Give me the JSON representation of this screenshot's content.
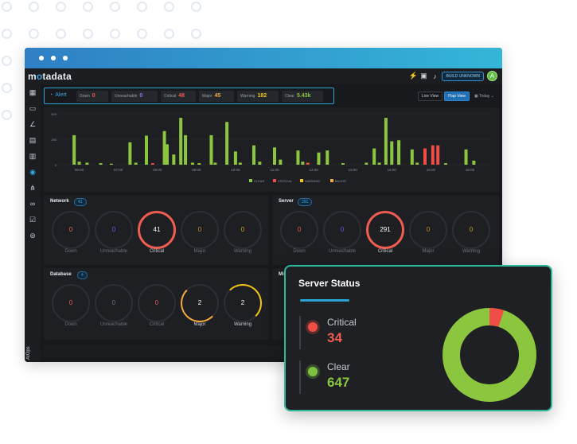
{
  "window": {
    "logo_prefix": "m",
    "logo_o": "o",
    "logo_suffix": "tadata",
    "build_label": "BUILD UNKNOWN",
    "avatar_letter": "A"
  },
  "alert": {
    "label": "Alert",
    "chips": [
      {
        "label": "Down",
        "value": "0",
        "color": "#ef5c50"
      },
      {
        "label": "Unreachable",
        "value": "0",
        "color": "#9b6cf2"
      },
      {
        "label": "Critical",
        "value": "48",
        "color": "#ef5c50"
      },
      {
        "label": "Major",
        "value": "45",
        "color": "#f2a93b"
      },
      {
        "label": "Warning",
        "value": "182",
        "color": "#f5c518"
      },
      {
        "label": "Clear",
        "value": "5.43k",
        "color": "#8cc63f"
      }
    ]
  },
  "views": {
    "live": "Live View",
    "flap": "Flap View",
    "range": "Today"
  },
  "chart_data": {
    "type": "bar",
    "y_ticks": [
      "0",
      "250",
      "500"
    ],
    "ylim": [
      0,
      500
    ],
    "x_ticks": [
      "06:00",
      "07:00",
      "08:00",
      "09:00",
      "10:00",
      "11:00",
      "12:00",
      "13:00",
      "14:00",
      "15:00",
      "16:00"
    ],
    "legend": [
      "CLEAR",
      "CRITICAL",
      "WARNING",
      "MAJOR"
    ],
    "colors": {
      "CLEAR": "#8cc63f",
      "CRITICAL": "#ef4d46",
      "WARNING": "#f5c518",
      "MAJOR": "#f2a93b"
    },
    "bars": [
      {
        "t": 5.87,
        "v": 290,
        "s": "CLEAR"
      },
      {
        "t": 6.0,
        "v": 30,
        "s": "CLEAR"
      },
      {
        "t": 6.2,
        "v": 20,
        "s": "CLEAR"
      },
      {
        "t": 6.55,
        "v": 15,
        "s": "CLEAR"
      },
      {
        "t": 6.82,
        "v": 10,
        "s": "CLEAR"
      },
      {
        "t": 7.3,
        "v": 220,
        "s": "CLEAR"
      },
      {
        "t": 7.45,
        "v": 20,
        "s": "CLEAR"
      },
      {
        "t": 7.72,
        "v": 285,
        "s": "CLEAR"
      },
      {
        "t": 7.88,
        "v": 15,
        "s": "CRITICAL"
      },
      {
        "t": 8.18,
        "v": 330,
        "s": "CLEAR"
      },
      {
        "t": 8.25,
        "v": 200,
        "s": "CLEAR"
      },
      {
        "t": 8.42,
        "v": 100,
        "s": "CLEAR"
      },
      {
        "t": 8.6,
        "v": 460,
        "s": "CLEAR"
      },
      {
        "t": 8.72,
        "v": 290,
        "s": "CLEAR"
      },
      {
        "t": 8.9,
        "v": 20,
        "s": "CLEAR"
      },
      {
        "t": 9.07,
        "v": 15,
        "s": "CLEAR"
      },
      {
        "t": 9.38,
        "v": 290,
        "s": "CLEAR"
      },
      {
        "t": 9.48,
        "v": 20,
        "s": "CLEAR"
      },
      {
        "t": 9.78,
        "v": 420,
        "s": "CLEAR"
      },
      {
        "t": 10.0,
        "v": 130,
        "s": "CLEAR"
      },
      {
        "t": 10.12,
        "v": 20,
        "s": "CLEAR"
      },
      {
        "t": 10.47,
        "v": 190,
        "s": "CLEAR"
      },
      {
        "t": 10.62,
        "v": 30,
        "s": "CLEAR"
      },
      {
        "t": 11.0,
        "v": 170,
        "s": "CLEAR"
      },
      {
        "t": 11.15,
        "v": 50,
        "s": "CLEAR"
      },
      {
        "t": 11.6,
        "v": 140,
        "s": "CLEAR"
      },
      {
        "t": 11.72,
        "v": 30,
        "s": "CLEAR"
      },
      {
        "t": 11.85,
        "v": 20,
        "s": "CRITICAL"
      },
      {
        "t": 12.13,
        "v": 120,
        "s": "CLEAR"
      },
      {
        "t": 12.35,
        "v": 140,
        "s": "CLEAR"
      },
      {
        "t": 12.75,
        "v": 15,
        "s": "CLEAR"
      },
      {
        "t": 13.35,
        "v": 20,
        "s": "CLEAR"
      },
      {
        "t": 13.55,
        "v": 160,
        "s": "CLEAR"
      },
      {
        "t": 13.68,
        "v": 20,
        "s": "CLEAR"
      },
      {
        "t": 13.85,
        "v": 460,
        "s": "CLEAR"
      },
      {
        "t": 14.0,
        "v": 230,
        "s": "CLEAR"
      },
      {
        "t": 14.18,
        "v": 240,
        "s": "CLEAR"
      },
      {
        "t": 14.52,
        "v": 150,
        "s": "CLEAR"
      },
      {
        "t": 14.65,
        "v": 20,
        "s": "CLEAR"
      },
      {
        "t": 14.85,
        "v": 160,
        "s": "CRITICAL"
      },
      {
        "t": 15.05,
        "v": 190,
        "s": "CRITICAL"
      },
      {
        "t": 15.18,
        "v": 190,
        "s": "CRITICAL"
      },
      {
        "t": 15.38,
        "v": 15,
        "s": "CLEAR"
      },
      {
        "t": 15.9,
        "v": 150,
        "s": "CLEAR"
      },
      {
        "t": 16.1,
        "v": 40,
        "s": "CLEAR"
      }
    ]
  },
  "network": {
    "title": "Network",
    "count": "41",
    "gauges": [
      {
        "label": "Down",
        "value": "0",
        "color": "#ef5c50"
      },
      {
        "label": "Unreachable",
        "value": "0",
        "color": "#5a60d8"
      },
      {
        "label": "Critical",
        "value": "41",
        "color": "#ffffff"
      },
      {
        "label": "Major",
        "value": "0",
        "color": "#c98a2a"
      },
      {
        "label": "Warning",
        "value": "0",
        "color": "#c9a21a"
      }
    ]
  },
  "server": {
    "title": "Server",
    "count": "291",
    "gauges": [
      {
        "label": "Down",
        "value": "0",
        "color": "#ef5c50"
      },
      {
        "label": "Unreachable",
        "value": "0",
        "color": "#5a60d8"
      },
      {
        "label": "Critical",
        "value": "291",
        "color": "#ffffff"
      },
      {
        "label": "Major",
        "value": "0",
        "color": "#c98a2a"
      },
      {
        "label": "Warning",
        "value": "0",
        "color": "#c9a21a"
      }
    ]
  },
  "database": {
    "title": "Database",
    "count": "4",
    "gauges": [
      {
        "label": "Down",
        "value": "0",
        "color": "#ef5c50"
      },
      {
        "label": "Unreachable",
        "value": "0",
        "color": "#6c727a"
      },
      {
        "label": "Critical",
        "value": "0",
        "color": "#ef5c50"
      },
      {
        "label": "Major",
        "value": "2",
        "color": "#ffffff"
      },
      {
        "label": "Warning",
        "value": "2",
        "color": "#ffffff"
      }
    ]
  },
  "hidden_panel_title": "Mi",
  "server_status": {
    "title": "Server Status",
    "items": [
      {
        "name": "Critical",
        "value": "34"
      },
      {
        "name": "Clear",
        "value": "647"
      }
    ],
    "critical_count": 34,
    "clear_count": 647,
    "colors": {
      "critical": "#ef4d46",
      "clear": "#8cc63f"
    }
  }
}
